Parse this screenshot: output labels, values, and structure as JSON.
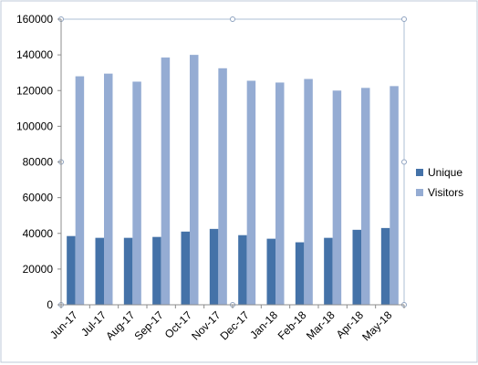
{
  "chart_data": {
    "type": "bar",
    "categories": [
      "Jun-17",
      "Jul-17",
      "Aug-17",
      "Sep-17",
      "Oct-17",
      "Nov-17",
      "Dec-17",
      "Jan-18",
      "Feb-18",
      "Mar-18",
      "Apr-18",
      "May-18"
    ],
    "series": [
      {
        "name": "Unique",
        "color": "#4472a8",
        "values": [
          38500,
          37500,
          37500,
          38000,
          41000,
          42500,
          39000,
          37000,
          35000,
          37500,
          42000,
          43000
        ]
      },
      {
        "name": "Visitors",
        "color": "#95acd3",
        "values": [
          128000,
          129500,
          125000,
          138500,
          140000,
          132500,
          125500,
          124500,
          126500,
          120000,
          121500,
          122500
        ]
      }
    ],
    "ylim": [
      0,
      160000
    ],
    "yticks": [
      0,
      20000,
      40000,
      60000,
      80000,
      100000,
      120000,
      140000,
      160000
    ],
    "grid": false,
    "legend_position": "right",
    "frame_color": "#aebfd6"
  }
}
